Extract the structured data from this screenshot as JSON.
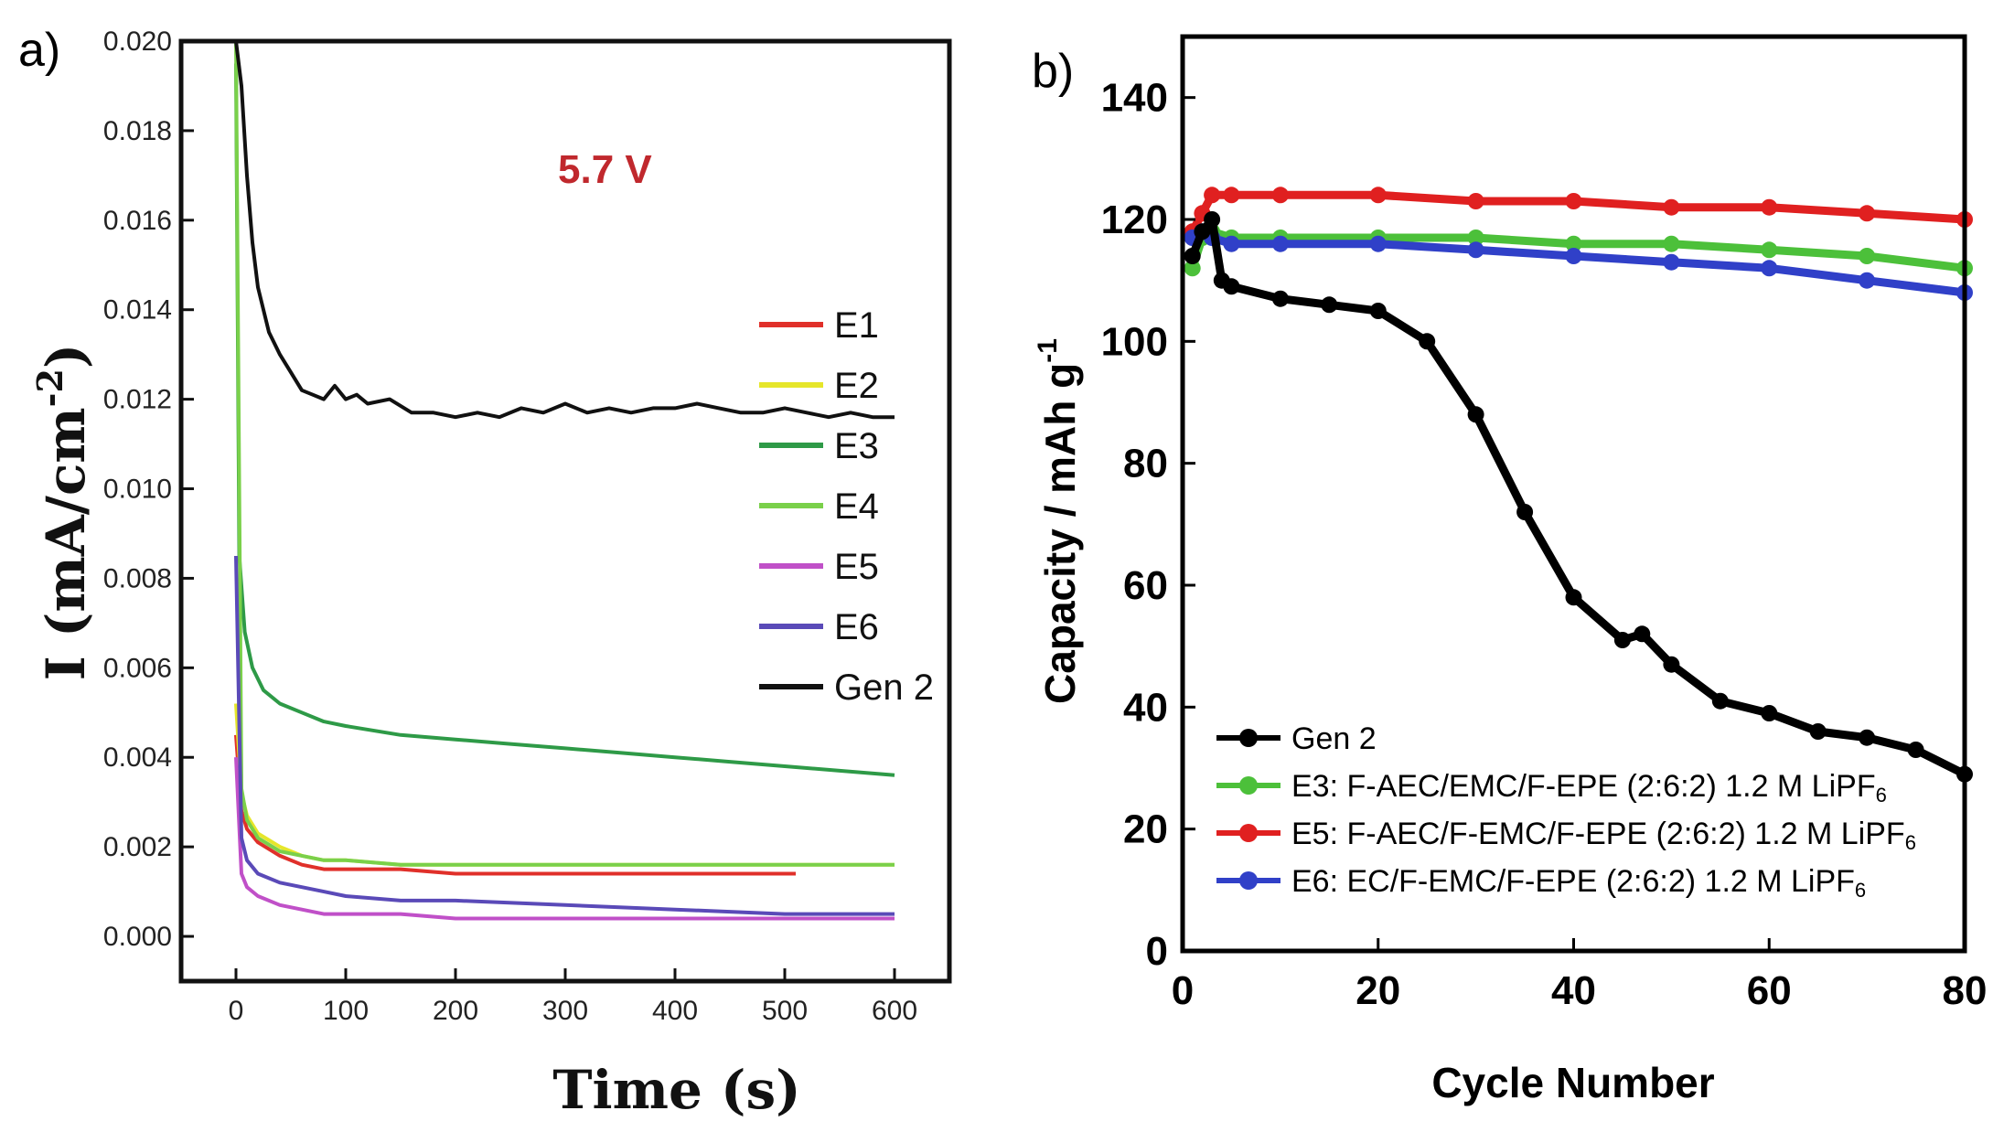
{
  "chart_data": [
    {
      "panel_label": "a)",
      "type": "line",
      "xlabel": "Time (s)",
      "ylabel": "I (mA/cm",
      "ylabel_sup": "-2",
      "ylabel_close": ")",
      "xlim": [
        -50,
        650
      ],
      "ylim": [
        -0.001,
        0.02
      ],
      "x_ticks": [
        "0",
        "100",
        "200",
        "300",
        "400",
        "500",
        "600"
      ],
      "x_tick_values": [
        0,
        100,
        200,
        300,
        400,
        500,
        600
      ],
      "y_ticks": [
        "0.000",
        "0.002",
        "0.004",
        "0.006",
        "0.008",
        "0.010",
        "0.012",
        "0.014",
        "0.016",
        "0.018",
        "0.020"
      ],
      "y_tick_values": [
        0,
        0.002,
        0.004,
        0.006,
        0.008,
        0.01,
        0.012,
        0.014,
        0.016,
        0.018,
        0.02
      ],
      "annotation": {
        "text": "5.7 V",
        "color": "#c0282d"
      },
      "legend_position": "right",
      "series": [
        {
          "name": "E1",
          "color": "#e0302a",
          "x": [
            0,
            5,
            10,
            20,
            40,
            60,
            80,
            100,
            150,
            200,
            300,
            400,
            510
          ],
          "y": [
            0.0045,
            0.0028,
            0.0024,
            0.0021,
            0.0018,
            0.0016,
            0.0015,
            0.0015,
            0.0015,
            0.0014,
            0.0014,
            0.0014,
            0.0014
          ]
        },
        {
          "name": "E2",
          "color": "#e6e62a",
          "x": [
            0,
            5,
            10,
            20,
            40,
            60,
            80,
            100,
            150,
            200,
            300,
            400,
            500,
            600
          ],
          "y": [
            0.0052,
            0.0032,
            0.0027,
            0.0023,
            0.002,
            0.0018,
            0.0017,
            0.0017,
            0.0016,
            0.0016,
            0.0016,
            0.0016,
            0.0016,
            0.0016
          ]
        },
        {
          "name": "E3",
          "color": "#2e9a47",
          "x": [
            0,
            3,
            8,
            15,
            25,
            40,
            60,
            80,
            100,
            150,
            200,
            250,
            300,
            350,
            400,
            450,
            500,
            550,
            600
          ],
          "y": [
            0.0195,
            0.0085,
            0.0068,
            0.006,
            0.0055,
            0.0052,
            0.005,
            0.0048,
            0.0047,
            0.0045,
            0.0044,
            0.0043,
            0.0042,
            0.0041,
            0.004,
            0.0039,
            0.0038,
            0.0037,
            0.0036
          ]
        },
        {
          "name": "E4",
          "color": "#7ad04a",
          "x": [
            0,
            5,
            10,
            20,
            40,
            60,
            80,
            100,
            150,
            200,
            300,
            400,
            500,
            600
          ],
          "y": [
            0.02,
            0.0033,
            0.0026,
            0.0022,
            0.0019,
            0.0018,
            0.0017,
            0.0017,
            0.0016,
            0.0016,
            0.0016,
            0.0016,
            0.0016,
            0.0016
          ]
        },
        {
          "name": "E5",
          "color": "#c050c8",
          "x": [
            0,
            5,
            10,
            20,
            40,
            60,
            80,
            100,
            150,
            200,
            300,
            400,
            500,
            600
          ],
          "y": [
            0.004,
            0.0014,
            0.0011,
            0.0009,
            0.0007,
            0.0006,
            0.0005,
            0.0005,
            0.0005,
            0.0004,
            0.0004,
            0.0004,
            0.0004,
            0.0004
          ]
        },
        {
          "name": "E6",
          "color": "#5a4ab8",
          "x": [
            0,
            5,
            10,
            20,
            40,
            60,
            80,
            100,
            150,
            200,
            300,
            400,
            500,
            600
          ],
          "y": [
            0.0085,
            0.0022,
            0.0017,
            0.0014,
            0.0012,
            0.0011,
            0.001,
            0.0009,
            0.0008,
            0.0008,
            0.0007,
            0.0006,
            0.0005,
            0.0005
          ]
        },
        {
          "name": "Gen 2",
          "color": "#111111",
          "x": [
            0,
            5,
            10,
            15,
            20,
            30,
            40,
            50,
            60,
            70,
            80,
            90,
            100,
            110,
            120,
            140,
            160,
            180,
            200,
            220,
            240,
            260,
            280,
            300,
            320,
            340,
            360,
            380,
            400,
            420,
            440,
            460,
            480,
            500,
            520,
            540,
            560,
            580,
            600
          ],
          "y": [
            0.02,
            0.019,
            0.017,
            0.0155,
            0.0145,
            0.0135,
            0.013,
            0.0126,
            0.0122,
            0.0121,
            0.012,
            0.0123,
            0.012,
            0.0121,
            0.0119,
            0.012,
            0.0117,
            0.0117,
            0.0116,
            0.0117,
            0.0116,
            0.0118,
            0.0117,
            0.0119,
            0.0117,
            0.0118,
            0.0117,
            0.0118,
            0.0118,
            0.0119,
            0.0118,
            0.0117,
            0.0117,
            0.0118,
            0.0117,
            0.0116,
            0.0117,
            0.0116,
            0.0116
          ]
        }
      ]
    },
    {
      "panel_label": "b)",
      "type": "line",
      "xlabel": "Cycle Number",
      "ylabel": "Capacity / mAh g",
      "ylabel_sup": "-1",
      "xlim": [
        0,
        80
      ],
      "ylim": [
        0,
        150
      ],
      "x_ticks": [
        "0",
        "20",
        "40",
        "60",
        "80"
      ],
      "x_tick_values": [
        0,
        20,
        40,
        60,
        80
      ],
      "y_ticks": [
        "0",
        "20",
        "40",
        "60",
        "80",
        "100",
        "120",
        "140"
      ],
      "y_tick_values": [
        0,
        20,
        40,
        60,
        80,
        100,
        120,
        140
      ],
      "legend_position": "bottom-left",
      "series": [
        {
          "name": "Gen 2",
          "color": "#000000",
          "x": [
            1,
            2,
            3,
            4,
            5,
            10,
            15,
            20,
            25,
            30,
            35,
            40,
            45,
            47,
            50,
            55,
            60,
            65,
            70,
            75,
            80
          ],
          "y": [
            114,
            118,
            120,
            110,
            109,
            107,
            106,
            105,
            100,
            88,
            72,
            58,
            51,
            52,
            47,
            41,
            39,
            36,
            35,
            33,
            29
          ]
        },
        {
          "name": "E3: F-AEC/EMC/F-EPE (2:6:2) 1.2 M LiPF",
          "name_sub": "6",
          "color": "#4cc03a",
          "x": [
            1,
            2,
            3,
            5,
            10,
            20,
            30,
            40,
            50,
            60,
            70,
            80
          ],
          "y": [
            112,
            117,
            118,
            117,
            117,
            117,
            117,
            116,
            116,
            115,
            114,
            112
          ]
        },
        {
          "name": "E5: F-AEC/F-EMC/F-EPE (2:6:2) 1.2 M LiPF",
          "name_sub": "6",
          "color": "#e02020",
          "x": [
            1,
            2,
            3,
            5,
            10,
            20,
            30,
            40,
            50,
            60,
            70,
            80
          ],
          "y": [
            118,
            121,
            124,
            124,
            124,
            124,
            123,
            123,
            122,
            122,
            121,
            120
          ]
        },
        {
          "name": "E6: EC/F-EMC/F-EPE (2:6:2) 1.2 M LiPF",
          "name_sub": "6",
          "color": "#3040c8",
          "x": [
            1,
            2,
            3,
            5,
            10,
            20,
            30,
            40,
            50,
            60,
            70,
            80
          ],
          "y": [
            117,
            118,
            117,
            116,
            116,
            116,
            115,
            114,
            113,
            112,
            110,
            108
          ]
        }
      ]
    }
  ]
}
